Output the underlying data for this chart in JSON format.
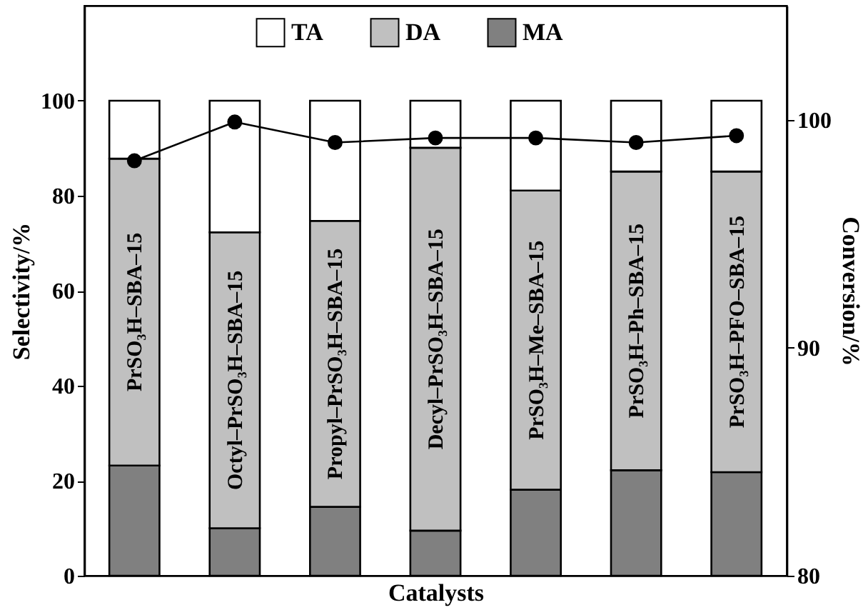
{
  "chart_data": {
    "type": "bar",
    "xlabel": "Catalysts",
    "ylabel": "Selectivity/%",
    "y2label": "Conversion/%",
    "categories": [
      "PrSO₃H–SBA–15",
      "Octyl–PrSO₃H–SBA–15",
      "Propyl–PrSO₃H–SBA–15",
      "Decyl–PrSO₃H–SBA–15",
      "PrSO₃H–Me–SBA–15",
      "PrSO₃H–Ph–SBA–15",
      "PrSO₃H–PFO–SBA–15"
    ],
    "stacked": true,
    "legend": "top",
    "series": [
      {
        "name": "MA",
        "color": "#808080",
        "values": [
          23.2,
          10,
          14.5,
          9.5,
          18.1,
          22.2,
          21.8
        ]
      },
      {
        "name": "DA",
        "color": "#c0c0c0",
        "values": [
          64.6,
          62.3,
          60.2,
          80.6,
          63,
          62.9,
          63.3
        ]
      },
      {
        "name": "TA",
        "color": "#ffffff",
        "values": [
          12.2,
          27.7,
          25.3,
          9.9,
          18.9,
          14.9,
          14.9
        ]
      },
      {
        "type": "line",
        "axis": "y2",
        "color": "#000000",
        "marker": "circle",
        "values": [
          98.2,
          99.9,
          99.0,
          99.2,
          99.2,
          99.0,
          99.3
        ]
      }
    ],
    "ylim": [
      0,
      120
    ],
    "yticks": [
      0,
      20,
      40,
      60,
      80,
      100
    ],
    "y2lim": [
      80,
      105
    ],
    "y2ticks": [
      80,
      90,
      100
    ]
  }
}
